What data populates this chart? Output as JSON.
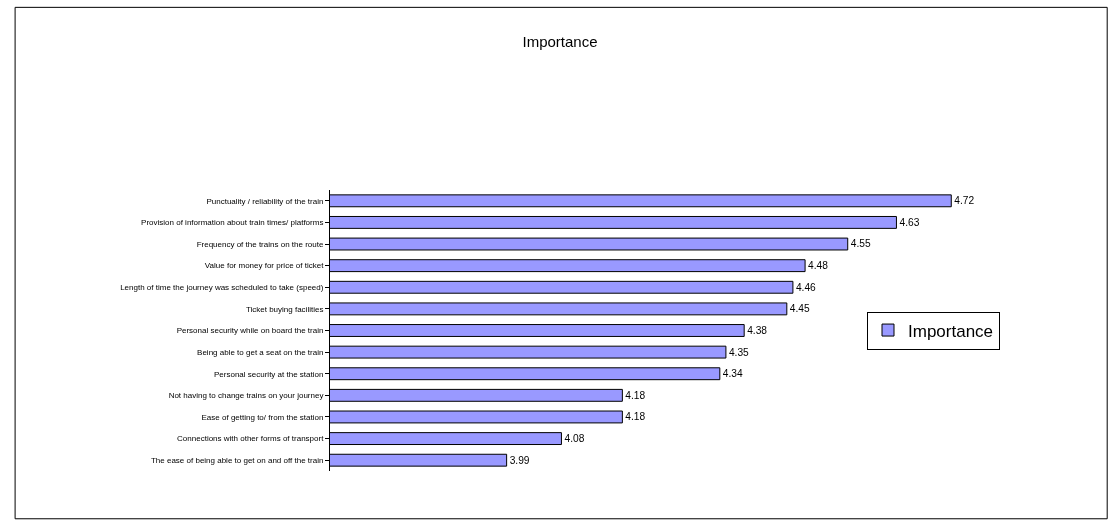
{
  "chart_data": {
    "type": "bar",
    "orientation": "horizontal",
    "title": "Importance",
    "categories": [
      "Punctuality / reliability of the train",
      "Provision of information about train times/ platforms",
      "Frequency of the trains on the route",
      "Value for money for price of ticket",
      "Length of time the journey was scheduled to take (speed)",
      "Ticket buying facilities",
      "Personal security while on board the train",
      "Being able to get a seat on the train",
      "Personal security at the station",
      "Not having to change trains on your journey",
      "Ease of getting to/ from the station",
      "Connections with other forms of transport",
      "The ease of being able to get on and off the train"
    ],
    "series": [
      {
        "name": "Importance",
        "color": "#9999ff",
        "values": [
          4.72,
          4.63,
          4.55,
          4.48,
          4.46,
          4.45,
          4.38,
          4.35,
          4.34,
          4.18,
          4.18,
          4.08,
          3.99
        ]
      }
    ],
    "xlim": [
      3.7,
      4.8
    ],
    "tick_labels": "y",
    "data_labels": true,
    "legend": "right"
  }
}
